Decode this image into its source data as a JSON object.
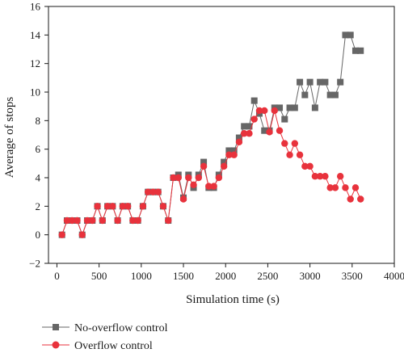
{
  "chart_data": {
    "type": "line",
    "title": "",
    "xlabel": "Simulation time (s)",
    "ylabel": "Average of stops",
    "xlim": [
      -100,
      4000
    ],
    "ylim": [
      -2,
      16
    ],
    "xticks": [
      0,
      500,
      1000,
      1500,
      2000,
      2500,
      3000,
      3500,
      4000
    ],
    "yticks": [
      -2,
      0,
      2,
      4,
      6,
      8,
      10,
      12,
      14,
      16
    ],
    "grid": false,
    "legend_position": "bottom-left",
    "series": [
      {
        "name": "No-overflow control",
        "color": "#666666",
        "marker": "square",
        "x": [
          60,
          120,
          180,
          240,
          300,
          360,
          420,
          480,
          540,
          600,
          660,
          720,
          780,
          840,
          900,
          960,
          1020,
          1080,
          1140,
          1200,
          1260,
          1320,
          1380,
          1440,
          1500,
          1560,
          1620,
          1680,
          1740,
          1800,
          1860,
          1920,
          1980,
          2040,
          2100,
          2160,
          2220,
          2280,
          2340,
          2400,
          2460,
          2520,
          2580,
          2640,
          2700,
          2760,
          2820,
          2880,
          2940,
          3000,
          3060,
          3120,
          3180,
          3240,
          3300,
          3360,
          3420,
          3480,
          3540,
          3600
        ],
        "y": [
          0,
          1,
          1,
          1,
          0,
          1,
          1,
          2,
          1,
          2,
          2,
          1,
          2,
          2,
          1,
          1,
          2,
          3,
          3,
          3,
          2,
          1,
          4,
          4.2,
          2.6,
          4.2,
          3.3,
          4.2,
          5.1,
          3.3,
          3.3,
          4.2,
          5.1,
          5.9,
          5.9,
          6.8,
          7.6,
          7.6,
          9.4,
          8.5,
          7.3,
          7.3,
          8.9,
          8.9,
          8.1,
          8.9,
          8.9,
          10.7,
          9.8,
          10.7,
          8.9,
          10.7,
          10.7,
          9.8,
          9.8,
          10.7,
          14,
          14,
          12.9,
          12.9
        ]
      },
      {
        "name": "Overflow control",
        "color": "#e8323c",
        "marker": "circle",
        "x": [
          60,
          120,
          180,
          240,
          300,
          360,
          420,
          480,
          540,
          600,
          660,
          720,
          780,
          840,
          900,
          960,
          1020,
          1080,
          1140,
          1200,
          1260,
          1320,
          1380,
          1440,
          1500,
          1560,
          1620,
          1680,
          1740,
          1800,
          1860,
          1920,
          1980,
          2040,
          2100,
          2160,
          2220,
          2280,
          2340,
          2400,
          2460,
          2520,
          2580,
          2640,
          2700,
          2760,
          2820,
          2880,
          2940,
          3000,
          3060,
          3120,
          3180,
          3240,
          3300,
          3360,
          3420,
          3480,
          3540,
          3600
        ],
        "y": [
          0,
          1,
          1,
          1,
          0,
          1,
          1,
          2,
          1,
          2,
          2,
          1,
          2,
          2,
          1,
          1,
          2,
          3,
          3,
          3,
          2,
          1,
          4,
          4,
          2.5,
          4,
          3.5,
          4,
          4.8,
          3.4,
          3.4,
          4,
          4.8,
          5.6,
          5.6,
          6.5,
          7.1,
          7.1,
          8.1,
          8.7,
          8.7,
          7.2,
          8.7,
          7.3,
          6.4,
          5.6,
          6.4,
          5.6,
          4.8,
          4.8,
          4.1,
          4.1,
          4.1,
          3.3,
          3.3,
          4.1,
          3.3,
          2.5,
          3.3,
          2.5
        ]
      }
    ]
  }
}
